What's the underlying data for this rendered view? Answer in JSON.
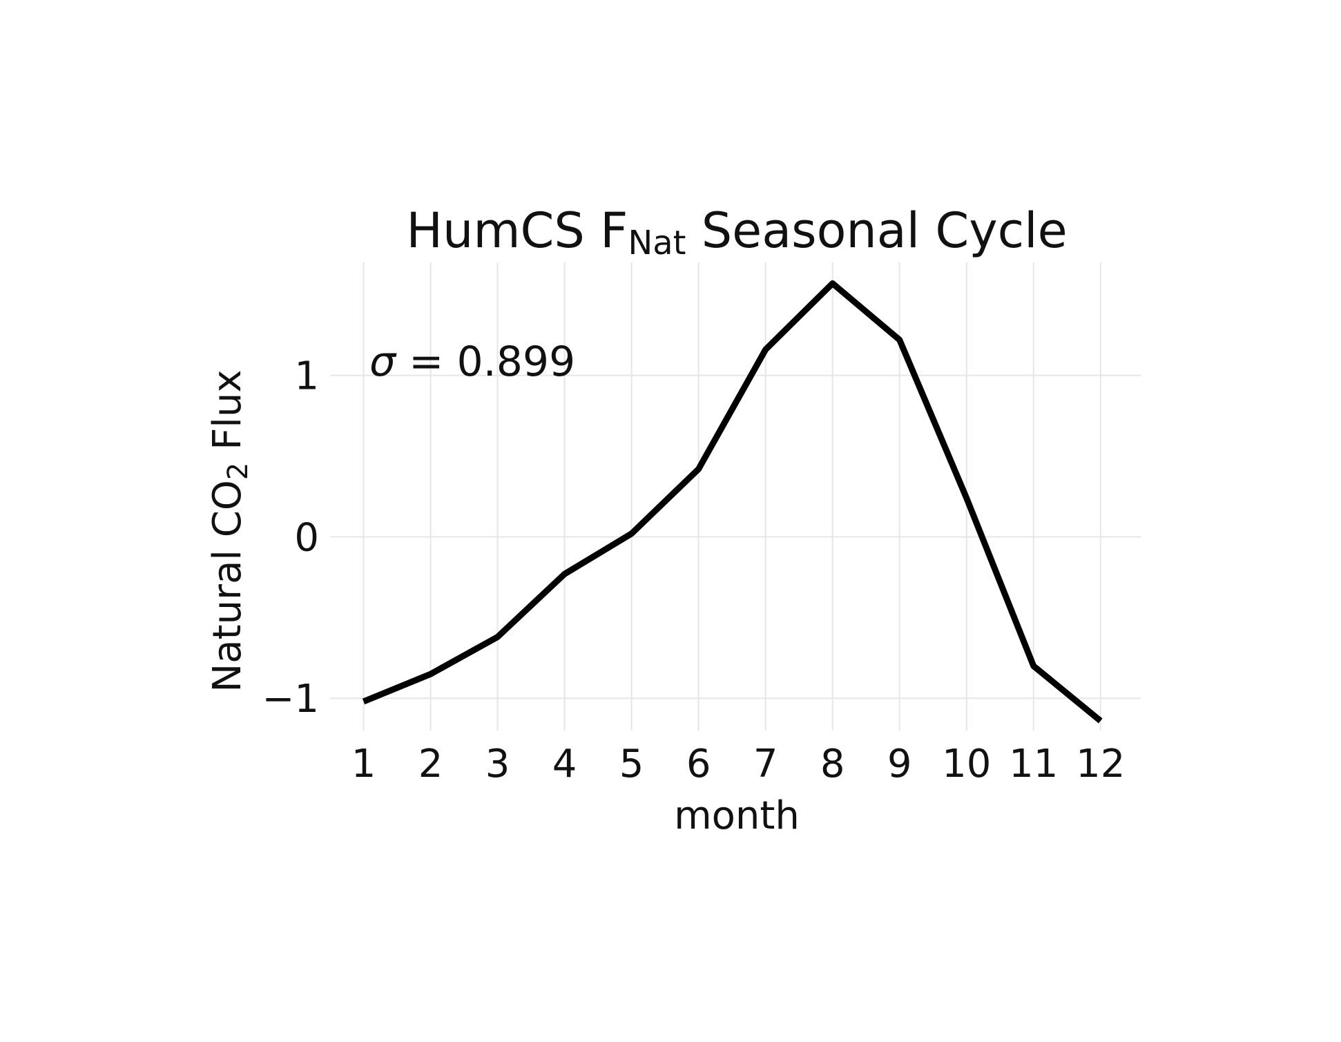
{
  "chart_data": {
    "type": "line",
    "title": {
      "main_before": "HumCS F",
      "subscript": "Nat",
      "main_after": " Seasonal Cycle"
    },
    "xlabel": "month",
    "ylabel": {
      "before": "Natural CO",
      "subscript": "2",
      "after": " Flux"
    },
    "x": [
      1,
      2,
      3,
      4,
      5,
      6,
      7,
      8,
      9,
      10,
      11,
      12
    ],
    "x_tick_labels": [
      "1",
      "2",
      "3",
      "4",
      "5",
      "6",
      "7",
      "8",
      "9",
      "10",
      "11",
      "12"
    ],
    "y_ticks": [
      -1,
      0,
      1
    ],
    "y_tick_labels": [
      "−1",
      "0",
      "1"
    ],
    "xlim": [
      0.5,
      12.6
    ],
    "ylim": [
      -1.2,
      1.7
    ],
    "grid": true,
    "series": [
      {
        "values": [
          -1.02,
          -0.85,
          -0.62,
          -0.23,
          0.02,
          0.42,
          1.16,
          1.57,
          1.22,
          0.24,
          -0.8,
          -1.14
        ],
        "color": "#000000"
      }
    ],
    "annotation": {
      "symbol": "σ",
      "text": " = 0.899"
    }
  }
}
